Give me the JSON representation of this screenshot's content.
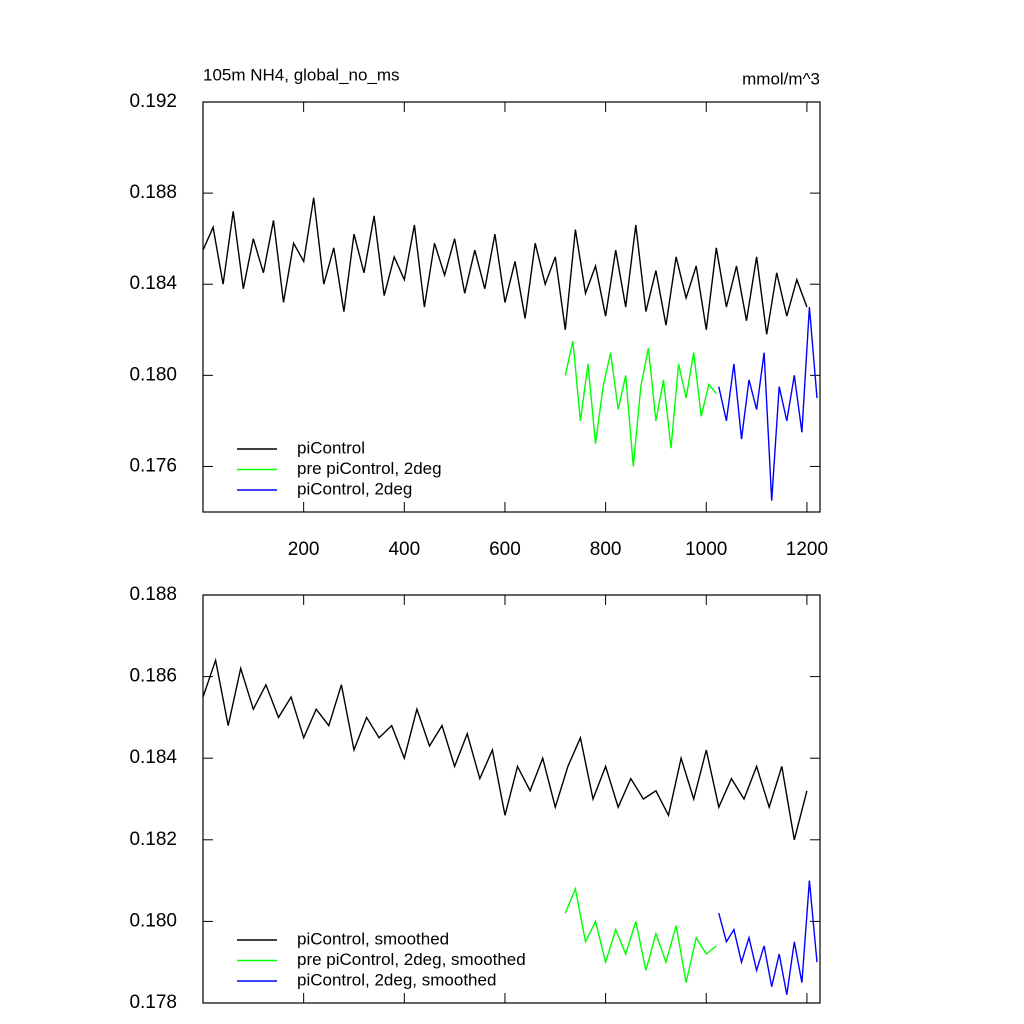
{
  "chart_data": [
    {
      "type": "line",
      "title": "105m NH4, global_no_ms",
      "subtitle": "mmol/m^3",
      "xlim": [
        0,
        1226
      ],
      "xticks": [
        200,
        400,
        600,
        800,
        1000,
        1200
      ],
      "ylim": [
        0.174,
        0.192
      ],
      "yticks": [
        0.176,
        {
          "value": 0.18,
          "label": "0.180"
        },
        0.184,
        0.188,
        0.192
      ],
      "legend": "lower left",
      "series": [
        {
          "name": "piControl",
          "color": "#000000",
          "x": [
            0,
            20,
            40,
            60,
            80,
            100,
            120,
            140,
            160,
            180,
            200,
            220,
            240,
            260,
            280,
            300,
            320,
            340,
            360,
            380,
            400,
            420,
            440,
            460,
            480,
            500,
            520,
            540,
            560,
            580,
            600,
            620,
            640,
            660,
            680,
            700,
            720,
            740,
            760,
            780,
            800,
            820,
            840,
            860,
            880,
            900,
            920,
            940,
            960,
            980,
            1000,
            1020,
            1040,
            1060,
            1080,
            1100,
            1120,
            1140,
            1160,
            1180,
            1200
          ],
          "values": [
            0.1855,
            0.1865,
            0.184,
            0.1872,
            0.1838,
            0.186,
            0.1845,
            0.1868,
            0.1832,
            0.1858,
            0.185,
            0.1878,
            0.184,
            0.1856,
            0.1828,
            0.1862,
            0.1845,
            0.187,
            0.1835,
            0.1852,
            0.1842,
            0.1866,
            0.183,
            0.1858,
            0.1844,
            0.186,
            0.1836,
            0.1855,
            0.1838,
            0.1862,
            0.1832,
            0.185,
            0.1825,
            0.1858,
            0.184,
            0.1852,
            0.182,
            0.1864,
            0.1836,
            0.1848,
            0.1826,
            0.1855,
            0.183,
            0.1866,
            0.1828,
            0.1846,
            0.1822,
            0.1852,
            0.1834,
            0.1848,
            0.182,
            0.1856,
            0.183,
            0.1848,
            0.1824,
            0.1852,
            0.1818,
            0.1845,
            0.1826,
            0.1842,
            0.183
          ]
        },
        {
          "name": "pre piControl, 2deg",
          "color": "#00ff00",
          "x": [
            720,
            735,
            750,
            765,
            780,
            795,
            810,
            825,
            840,
            855,
            870,
            885,
            900,
            915,
            930,
            945,
            960,
            975,
            990,
            1005,
            1020
          ],
          "values": [
            0.18,
            0.1815,
            0.178,
            0.1805,
            0.177,
            0.1795,
            0.181,
            0.1785,
            0.18,
            0.176,
            0.1795,
            0.1812,
            0.178,
            0.1798,
            0.1768,
            0.1805,
            0.179,
            0.181,
            0.1782,
            0.1796,
            0.1792
          ]
        },
        {
          "name": "piControl, 2deg",
          "color": "#0000ff",
          "x": [
            1025,
            1040,
            1055,
            1070,
            1085,
            1100,
            1115,
            1130,
            1145,
            1160,
            1175,
            1190,
            1205,
            1220
          ],
          "values": [
            0.1795,
            0.178,
            0.1805,
            0.1772,
            0.1798,
            0.1785,
            0.181,
            0.1745,
            0.1795,
            0.178,
            0.18,
            0.1775,
            0.183,
            0.179
          ]
        }
      ]
    },
    {
      "type": "line",
      "xlim": [
        0,
        1226
      ],
      "xticks": [
        200,
        400,
        600,
        800,
        1000,
        1200
      ],
      "ylim": [
        0.178,
        0.188
      ],
      "yticks": [
        0.178,
        {
          "value": 0.18,
          "label": "0.180"
        },
        0.182,
        0.184,
        0.186,
        0.188
      ],
      "legend": "lower left",
      "series": [
        {
          "name": "piControl, smoothed",
          "color": "#000000",
          "x": [
            0,
            25,
            50,
            75,
            100,
            125,
            150,
            175,
            200,
            225,
            250,
            275,
            300,
            325,
            350,
            375,
            400,
            425,
            450,
            475,
            500,
            525,
            550,
            575,
            600,
            625,
            650,
            675,
            700,
            725,
            750,
            775,
            800,
            825,
            850,
            875,
            900,
            925,
            950,
            975,
            1000,
            1025,
            1050,
            1075,
            1100,
            1125,
            1150,
            1175,
            1200
          ],
          "values": [
            0.1855,
            0.1864,
            0.1848,
            0.1862,
            0.1852,
            0.1858,
            0.185,
            0.1855,
            0.1845,
            0.1852,
            0.1848,
            0.1858,
            0.1842,
            0.185,
            0.1845,
            0.1848,
            0.184,
            0.1852,
            0.1843,
            0.1848,
            0.1838,
            0.1846,
            0.1835,
            0.1842,
            0.1826,
            0.1838,
            0.1832,
            0.184,
            0.1828,
            0.1838,
            0.1845,
            0.183,
            0.1838,
            0.1828,
            0.1835,
            0.183,
            0.1832,
            0.1826,
            0.184,
            0.183,
            0.1842,
            0.1828,
            0.1835,
            0.183,
            0.1838,
            0.1828,
            0.1838,
            0.182,
            0.1832
          ]
        },
        {
          "name": "pre piControl, 2deg, smoothed",
          "color": "#00ff00",
          "x": [
            720,
            740,
            760,
            780,
            800,
            820,
            840,
            860,
            880,
            900,
            920,
            940,
            960,
            980,
            1000,
            1020
          ],
          "values": [
            0.1802,
            0.1808,
            0.1795,
            0.18,
            0.179,
            0.1798,
            0.1792,
            0.18,
            0.1788,
            0.1797,
            0.179,
            0.1799,
            0.1785,
            0.1796,
            0.1792,
            0.1794
          ]
        },
        {
          "name": "piControl, 2deg, smoothed",
          "color": "#0000ff",
          "x": [
            1025,
            1040,
            1055,
            1070,
            1085,
            1100,
            1115,
            1130,
            1145,
            1160,
            1175,
            1190,
            1205,
            1220
          ],
          "values": [
            0.1802,
            0.1795,
            0.1798,
            0.179,
            0.1796,
            0.1788,
            0.1794,
            0.1784,
            0.1792,
            0.1782,
            0.1795,
            0.1785,
            0.181,
            0.179
          ]
        }
      ]
    }
  ]
}
